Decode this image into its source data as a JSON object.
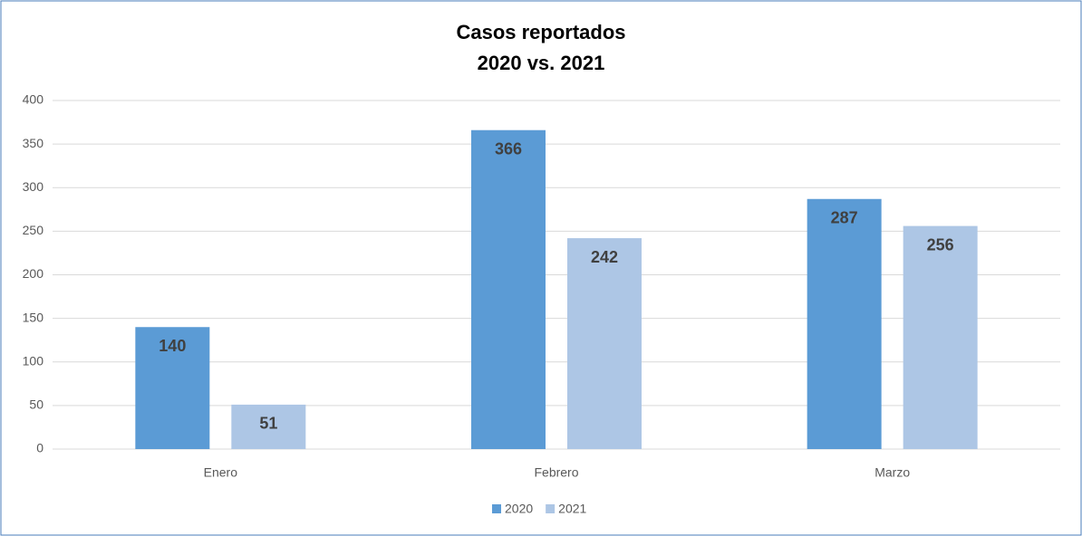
{
  "chart_data": {
    "type": "bar",
    "title": "Casos reportados",
    "subtitle": "2020 vs. 2021",
    "categories": [
      "Enero",
      "Febrero",
      "Marzo"
    ],
    "series": [
      {
        "name": "2020",
        "color": "#5b9bd5",
        "values": [
          140,
          366,
          287
        ]
      },
      {
        "name": "2021",
        "color": "#adc6e5",
        "values": [
          51,
          242,
          256
        ]
      }
    ],
    "ylim": [
      0,
      400
    ],
    "yticks": [
      0,
      50,
      100,
      150,
      200,
      250,
      300,
      350,
      400
    ],
    "grid": true,
    "legend": "bottom"
  }
}
